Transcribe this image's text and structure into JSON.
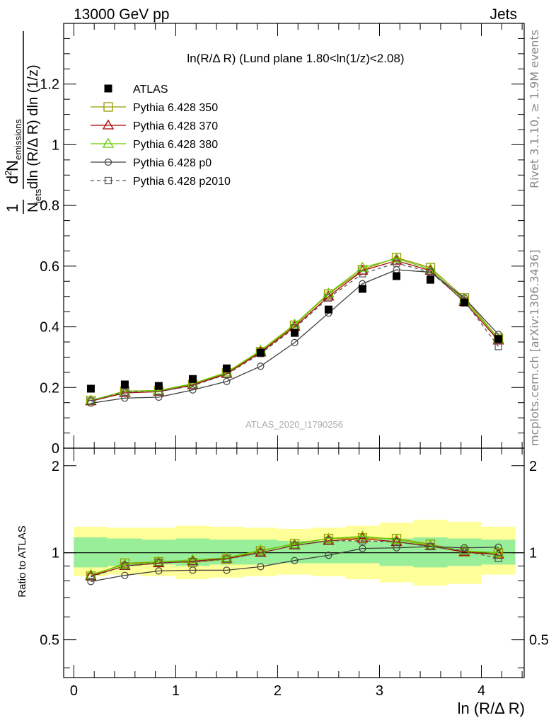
{
  "header": {
    "left": "13000 GeV pp",
    "right": "Jets",
    "rivet": "Rivet 3.1.10, ≥ 1.9M events",
    "mcplots": "mcplots.cern.ch [arXiv:1306.3436]",
    "watermark": "ATLAS_2020_I1790256"
  },
  "colors": {
    "atlas": "#000000",
    "p350": "#999900",
    "p370": "#aa0000",
    "p380": "#66cc00",
    "p0": "#404040",
    "p2010": "#555555",
    "band_inner": "#99ee99",
    "band_outer": "#ffff99"
  },
  "chart_data": [
    {
      "type": "scatter",
      "title": "ln(R/Δ R) (Lund plane 1.80<ln(1/z)<2.08)",
      "xlabel": "ln (R/Δ R)",
      "ylabel": "1/N_jets d²N_emissions / dln(R/Δ R) dln(1/z)",
      "xlim": [
        -0.1,
        4.42
      ],
      "ylim": [
        0,
        1.4
      ],
      "yticks": [
        "0",
        "0.2",
        "0.4",
        "0.6",
        "0.8",
        "1",
        "1.2"
      ],
      "x": [
        0.167,
        0.5,
        0.833,
        1.167,
        1.5,
        1.833,
        2.167,
        2.5,
        2.833,
        3.167,
        3.5,
        3.833,
        4.167
      ],
      "series": [
        {
          "name": "ATLAS",
          "key": "atlas",
          "marker": "filled-square",
          "line": "none",
          "values": [
            0.196,
            0.21,
            0.205,
            0.228,
            0.263,
            0.315,
            0.38,
            0.457,
            0.525,
            0.567,
            0.555,
            0.48,
            0.36
          ]
        },
        {
          "name": "Pythia 6.428 350",
          "key": "p350",
          "marker": "open-square",
          "line": "solid",
          "values": [
            0.157,
            0.188,
            0.19,
            0.21,
            0.248,
            0.318,
            0.405,
            0.508,
            0.588,
            0.628,
            0.595,
            0.495,
            0.362
          ]
        },
        {
          "name": "Pythia 6.428 370",
          "key": "p370",
          "marker": "open-triangle",
          "line": "solid",
          "values": [
            0.155,
            0.182,
            0.186,
            0.208,
            0.245,
            0.316,
            0.4,
            0.5,
            0.585,
            0.618,
            0.585,
            0.482,
            0.355
          ]
        },
        {
          "name": "Pythia 6.428 380",
          "key": "p380",
          "marker": "open-triangle",
          "line": "solid",
          "values": [
            0.158,
            0.186,
            0.19,
            0.213,
            0.25,
            0.322,
            0.408,
            0.51,
            0.595,
            0.625,
            0.59,
            0.488,
            0.36
          ]
        },
        {
          "name": "Pythia 6.428 p0",
          "key": "p0",
          "marker": "open-circle",
          "line": "solid",
          "values": [
            0.148,
            0.165,
            0.168,
            0.192,
            0.22,
            0.27,
            0.348,
            0.445,
            0.542,
            0.588,
            0.58,
            0.495,
            0.375
          ]
        },
        {
          "name": "Pythia 6.428 p2010",
          "key": "p2010",
          "marker": "open-square-small",
          "line": "dashed",
          "values": [
            0.155,
            0.185,
            0.186,
            0.206,
            0.243,
            0.312,
            0.396,
            0.495,
            0.575,
            0.61,
            0.58,
            0.485,
            0.335
          ]
        }
      ]
    },
    {
      "type": "scatter",
      "ylabel": "Ratio to ATLAS",
      "xlabel": "ln (R/Δ R)",
      "xlim": [
        -0.1,
        4.42
      ],
      "ylim": [
        0.37,
        2.3
      ],
      "log_y": true,
      "yticks": [
        "0.5",
        "1",
        "2"
      ],
      "xticks": [
        "0",
        "1",
        "2",
        "3",
        "4"
      ],
      "x": [
        0.167,
        0.5,
        0.833,
        1.167,
        1.5,
        1.833,
        2.167,
        2.5,
        2.833,
        3.167,
        3.5,
        3.833,
        4.167
      ],
      "band_edges": [
        0,
        0.333,
        0.667,
        1,
        1.333,
        1.667,
        2,
        2.333,
        2.667,
        3,
        3.333,
        3.667,
        4,
        4.333
      ],
      "band_inner": [
        [
          0.89,
          1.13
        ],
        [
          0.9,
          1.12
        ],
        [
          0.91,
          1.11
        ],
        [
          0.9,
          1.12
        ],
        [
          0.91,
          1.11
        ],
        [
          0.91,
          1.11
        ],
        [
          0.92,
          1.1
        ],
        [
          0.92,
          1.1
        ],
        [
          0.92,
          1.1
        ],
        [
          0.9,
          1.12
        ],
        [
          0.89,
          1.13
        ],
        [
          0.9,
          1.12
        ],
        [
          0.91,
          1.11
        ]
      ],
      "band_outer": [
        [
          0.83,
          1.23
        ],
        [
          0.84,
          1.22
        ],
        [
          0.83,
          1.22
        ],
        [
          0.81,
          1.24
        ],
        [
          0.82,
          1.23
        ],
        [
          0.83,
          1.22
        ],
        [
          0.84,
          1.21
        ],
        [
          0.83,
          1.22
        ],
        [
          0.81,
          1.24
        ],
        [
          0.79,
          1.27
        ],
        [
          0.77,
          1.3
        ],
        [
          0.78,
          1.28
        ],
        [
          0.84,
          1.23
        ]
      ],
      "series": [
        {
          "name": "Pythia 6.428 350",
          "key": "p350",
          "marker": "open-square",
          "line": "solid",
          "values": [
            0.83,
            0.92,
            0.93,
            0.925,
            0.95,
            1.015,
            1.075,
            1.12,
            1.125,
            1.12,
            1.07,
            1.01,
            1.0
          ]
        },
        {
          "name": "Pythia 6.428 370",
          "key": "p370",
          "marker": "open-triangle",
          "line": "solid",
          "values": [
            0.83,
            0.9,
            0.92,
            0.935,
            0.955,
            1.0,
            1.06,
            1.1,
            1.12,
            1.09,
            1.055,
            1.005,
            0.985
          ]
        },
        {
          "name": "Pythia 6.428 380",
          "key": "p380",
          "marker": "open-triangle",
          "line": "solid",
          "values": [
            0.84,
            0.91,
            0.93,
            0.945,
            0.96,
            1.02,
            1.07,
            1.12,
            1.14,
            1.11,
            1.06,
            1.015,
            1.0
          ]
        },
        {
          "name": "Pythia 6.428 p0",
          "key": "p0",
          "marker": "open-circle",
          "line": "solid",
          "values": [
            0.795,
            0.835,
            0.865,
            0.87,
            0.87,
            0.895,
            0.94,
            0.98,
            1.035,
            1.04,
            1.05,
            1.04,
            1.045
          ]
        },
        {
          "name": "Pythia 6.428 p2010",
          "key": "p2010",
          "marker": "open-square-small",
          "line": "dashed",
          "values": [
            0.825,
            0.9,
            0.925,
            0.93,
            0.95,
            1.0,
            1.06,
            1.1,
            1.1,
            1.09,
            1.05,
            1.015,
            0.955
          ]
        }
      ]
    }
  ]
}
